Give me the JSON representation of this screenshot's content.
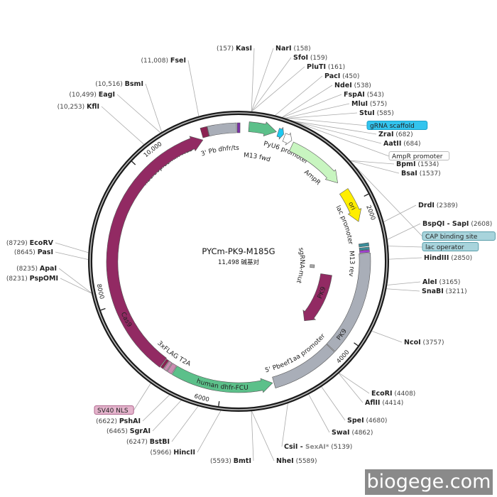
{
  "map": {
    "title": "PYCm-PK9-M185G",
    "size_label": "11,498 碱基对",
    "total_bp": 11498,
    "ticks": [
      {
        "bp": 2000,
        "label": "2000"
      },
      {
        "bp": 4000,
        "label": "4000"
      },
      {
        "bp": 6000,
        "label": "6000"
      },
      {
        "bp": 8000,
        "label": "8000"
      },
      {
        "bp": 10000,
        "label": "10,000"
      }
    ],
    "features": [
      {
        "name": "M13 fwd",
        "start": 11480,
        "end": 20,
        "dir": 0,
        "color": "#7b2fa8",
        "track": "outer"
      },
      {
        "name": "3' Pb dhfr/ts",
        "start": 11080,
        "end": 11470,
        "dir": 0,
        "color": "#a9aeb8",
        "track": "outer"
      },
      {
        "name": "nucleoplasmin NLS",
        "start": 10985,
        "end": 11075,
        "dir": 0,
        "color": "#8b2252",
        "track": "outer"
      },
      {
        "name": "PyU6 promoter",
        "start": 140,
        "end": 520,
        "dir": 1,
        "color": "#5cc08a",
        "track": "outer"
      },
      {
        "name": "gRNA scaffold",
        "start": 545,
        "end": 625,
        "dir": 1,
        "color": "#1ec8f0",
        "track": "outer"
      },
      {
        "name": "AmpR promoter",
        "start": 645,
        "end": 760,
        "dir": 1,
        "color": "#ffffff",
        "track": "outer"
      },
      {
        "name": "AmpR",
        "start": 790,
        "end": 1650,
        "dir": 1,
        "color": "#c8f5c0",
        "track": "outer"
      },
      {
        "name": "ori",
        "start": 1800,
        "end": 2290,
        "dir": 1,
        "color": "#ffee00",
        "track": "outer"
      },
      {
        "name": "CAP binding site",
        "start": 2615,
        "end": 2660,
        "dir": 0,
        "color": "#3a8d9a",
        "track": "outer"
      },
      {
        "name": "lac operator",
        "start": 2675,
        "end": 2710,
        "dir": 0,
        "color": "#3a8d9a",
        "track": "outer"
      },
      {
        "name": "M13 rev",
        "start": 2715,
        "end": 2750,
        "dir": 0,
        "color": "#a040d0",
        "track": "outer"
      },
      {
        "name": "PK9",
        "start": 2760,
        "end": 4250,
        "dir": 0,
        "color": "#a9aeb8",
        "track": "outer"
      },
      {
        "name": "5' Pbeef1aa promoter",
        "start": 4260,
        "end": 5230,
        "dir": 0,
        "color": "#a9aeb8",
        "track": "outer"
      },
      {
        "name": "human dhfr-FCU",
        "start": 5250,
        "end": 6720,
        "dir": -1,
        "color": "#5cc08a",
        "track": "outer"
      },
      {
        "name": "T2A",
        "start": 6730,
        "end": 6800,
        "dir": 0,
        "color": "#c98bb0",
        "track": "outer"
      },
      {
        "name": "3xFLAG",
        "start": 6810,
        "end": 6860,
        "dir": 0,
        "color": "#c98bb0",
        "track": "outer"
      },
      {
        "name": "SV40 NLS",
        "start": 6870,
        "end": 6910,
        "dir": 0,
        "color": "#8b2252",
        "track": "outer"
      },
      {
        "name": "Cas9",
        "start": 6920,
        "end": 10975,
        "dir": 1,
        "color": "#922a63",
        "track": "outer"
      },
      {
        "name": "sgRNA-mut",
        "start": 2960,
        "end": 3030,
        "dir": 0,
        "color": "#aaaaaa",
        "track": "inner"
      },
      {
        "name": "PK9",
        "start": 3150,
        "end": 4220,
        "dir": 1,
        "color": "#922a63",
        "track": "inner"
      }
    ],
    "boxed_labels": [
      {
        "text": "gRNA scaffold",
        "color": "#33c4ee",
        "border": "#1aa0c8"
      },
      {
        "text": "AmpR promoter",
        "color": "#ffffff",
        "border": "#bbbbbb"
      },
      {
        "text": "CAP binding site",
        "color": "#a8d4dc",
        "border": "#5a9eaa"
      },
      {
        "text": "lac operator",
        "color": "#a8d4dc",
        "border": "#5a9eaa"
      },
      {
        "text": "SV40 NLS",
        "color": "#e4b4cc",
        "border": "#b0668e"
      }
    ],
    "sites": [
      {
        "name": "KasI",
        "pos": "(157)",
        "bp": 157
      },
      {
        "name": "NarI",
        "pos": "(158)",
        "bp": 158
      },
      {
        "name": "SfoI",
        "pos": "(159)",
        "bp": 159
      },
      {
        "name": "PluTI",
        "pos": "(161)",
        "bp": 161
      },
      {
        "name": "PacI",
        "pos": "(450)",
        "bp": 450
      },
      {
        "name": "NdeI",
        "pos": "(538)",
        "bp": 538
      },
      {
        "name": "FspAI",
        "pos": "(543)",
        "bp": 543
      },
      {
        "name": "MluI",
        "pos": "(575)",
        "bp": 575
      },
      {
        "name": "StuI",
        "pos": "(585)",
        "bp": 585
      },
      {
        "name": "ZraI",
        "pos": "(682)",
        "bp": 682
      },
      {
        "name": "AatII",
        "pos": "(684)",
        "bp": 684
      },
      {
        "name": "BpmI",
        "pos": "(1534)",
        "bp": 1534
      },
      {
        "name": "BsaI",
        "pos": "(1537)",
        "bp": 1537
      },
      {
        "name": "DrdI",
        "pos": "(2389)",
        "bp": 2389
      },
      {
        "name": "BspQI - SapI",
        "pos": "(2608)",
        "bp": 2608
      },
      {
        "name": "HindIII",
        "pos": "(2850)",
        "bp": 2850
      },
      {
        "name": "AleI",
        "pos": "(3165)",
        "bp": 3165
      },
      {
        "name": "SnaBI",
        "pos": "(3211)",
        "bp": 3211
      },
      {
        "name": "NcoI",
        "pos": "(3757)",
        "bp": 3757
      },
      {
        "name": "EcoRI",
        "pos": "(4408)",
        "bp": 4408
      },
      {
        "name": "AflII",
        "pos": "(4414)",
        "bp": 4414
      },
      {
        "name": "SpeI",
        "pos": "(4680)",
        "bp": 4680
      },
      {
        "name": "SwaI",
        "pos": "(4862)",
        "bp": 4862
      },
      {
        "name": "CsiI - ",
        "extra": "SexAI*",
        "pos": "(5139)",
        "bp": 5139
      },
      {
        "name": "NheI",
        "pos": "(5589)",
        "bp": 5589
      },
      {
        "name": "BmtI",
        "pos": "(5593)",
        "bp": 5593
      },
      {
        "name": "HincII",
        "pos": "(5966)",
        "bp": 5966
      },
      {
        "name": "BstBI",
        "pos": "(6247)",
        "bp": 6247
      },
      {
        "name": "SgrAI",
        "pos": "(6465)",
        "bp": 6465
      },
      {
        "name": "PshAI",
        "pos": "(6622)",
        "bp": 6622
      },
      {
        "name": "PspOMI",
        "pos": "(8231)",
        "bp": 8231
      },
      {
        "name": "ApaI",
        "pos": "(8235)",
        "bp": 8235
      },
      {
        "name": "PasI",
        "pos": "(8645)",
        "bp": 8645
      },
      {
        "name": "EcoRV",
        "pos": "(8729)",
        "bp": 8729
      },
      {
        "name": "KflI",
        "pos": "(10,253)",
        "bp": 10253
      },
      {
        "name": "EagI",
        "pos": "(10,499)",
        "bp": 10499
      },
      {
        "name": "BsmI",
        "pos": "(10,516)",
        "bp": 10516
      },
      {
        "name": "FseI",
        "pos": "(11,008)",
        "bp": 11008
      }
    ]
  },
  "watermark": "biogege.com"
}
